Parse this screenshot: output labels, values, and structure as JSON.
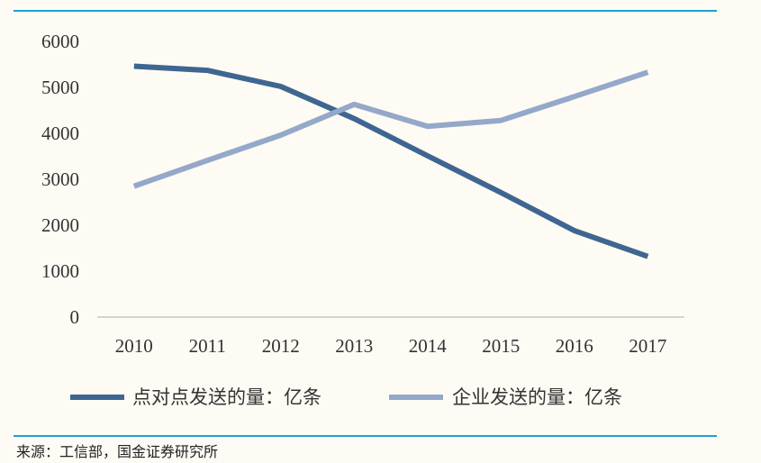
{
  "chart_data": {
    "type": "line",
    "title": "",
    "xlabel": "",
    "ylabel": "",
    "categories": [
      "2010",
      "2011",
      "2012",
      "2013",
      "2014",
      "2015",
      "2016",
      "2017"
    ],
    "ylim": [
      0,
      6000
    ],
    "yticks": [
      0,
      1000,
      2000,
      3000,
      4000,
      5000,
      6000
    ],
    "grid": false,
    "legend_position": "bottom",
    "series": [
      {
        "name": "点对点发送的量：亿条",
        "color": "#3f6691",
        "values": [
          5460,
          5370,
          5020,
          4320,
          3510,
          2710,
          1880,
          1320
        ]
      },
      {
        "name": "企业发送的量：亿条",
        "color": "#94a8c9",
        "values": [
          2850,
          3410,
          3960,
          4630,
          4150,
          4280,
          4800,
          5330
        ]
      }
    ]
  },
  "source": "来源：工信部，国金证券研究所"
}
